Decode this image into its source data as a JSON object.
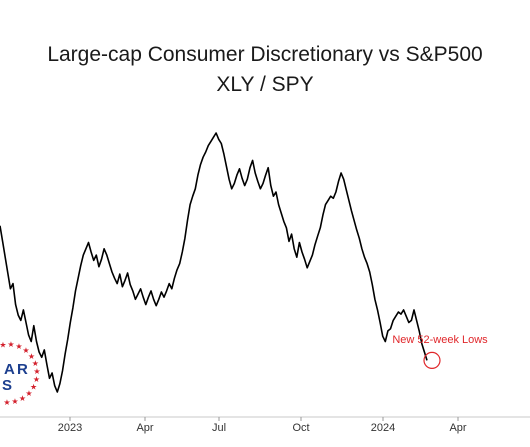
{
  "chart_data": {
    "type": "line",
    "title": "Large-cap Consumer Discretionary vs S&P500",
    "subtitle": "XLY / SPY",
    "xlabel": "",
    "ylabel": "",
    "x_tick_labels": [
      "2023",
      "Apr",
      "Jul",
      "Oct",
      "2024",
      "Apr"
    ],
    "grid": false,
    "series": [
      {
        "values": [
          0.98,
          0.965,
          0.95,
          0.935,
          0.92,
          0.925,
          0.905,
          0.895,
          0.89,
          0.9,
          0.888,
          0.876,
          0.87,
          0.885,
          0.87,
          0.86,
          0.855,
          0.862,
          0.848,
          0.835,
          0.84,
          0.828,
          0.822,
          0.83,
          0.842,
          0.858,
          0.872,
          0.888,
          0.902,
          0.918,
          0.93,
          0.942,
          0.952,
          0.958,
          0.964,
          0.955,
          0.947,
          0.952,
          0.941,
          0.948,
          0.958,
          0.952,
          0.944,
          0.936,
          0.93,
          0.925,
          0.934,
          0.922,
          0.928,
          0.935,
          0.924,
          0.918,
          0.91,
          0.915,
          0.92,
          0.912,
          0.905,
          0.912,
          0.918,
          0.91,
          0.904,
          0.91,
          0.917,
          0.912,
          0.918,
          0.925,
          0.92,
          0.93,
          0.938,
          0.944,
          0.955,
          0.968,
          0.985,
          1.0,
          1.008,
          1.015,
          1.028,
          1.038,
          1.045,
          1.05,
          1.056,
          1.06,
          1.064,
          1.068,
          1.062,
          1.058,
          1.048,
          1.036,
          1.024,
          1.015,
          1.02,
          1.028,
          1.034,
          1.025,
          1.018,
          1.024,
          1.035,
          1.042,
          1.03,
          1.022,
          1.015,
          1.02,
          1.028,
          1.035,
          1.018,
          1.008,
          1.012,
          1.0,
          0.992,
          0.984,
          0.978,
          0.965,
          0.972,
          0.958,
          0.95,
          0.964,
          0.955,
          0.948,
          0.94,
          0.946,
          0.952,
          0.962,
          0.97,
          0.978,
          0.99,
          1.0,
          1.004,
          1.008,
          1.006,
          1.012,
          1.022,
          1.03,
          1.024,
          1.014,
          1.004,
          0.994,
          0.985,
          0.976,
          0.968,
          0.958,
          0.95,
          0.944,
          0.936,
          0.924,
          0.91,
          0.9,
          0.888,
          0.875,
          0.87,
          0.88,
          0.882,
          0.89,
          0.894,
          0.898,
          0.896,
          0.9,
          0.894,
          0.888,
          0.89,
          0.9,
          0.89,
          0.88,
          0.868,
          0.86,
          0.852
        ]
      }
    ],
    "annotation": "New 52-week Lows",
    "marker_color": "#e0262a",
    "line_color": "#000000"
  },
  "watermark": {
    "letters": [
      "A",
      "R",
      "S"
    ],
    "star_color": "#d3202c",
    "text_color": "#1c3f8f"
  }
}
